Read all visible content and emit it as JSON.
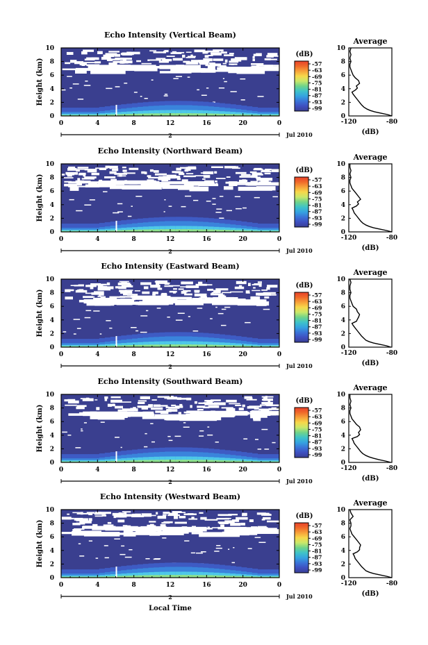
{
  "figure": {
    "footer_xlabel": "Local Time",
    "colorbar_label": "(dB)",
    "colorbar_ticks": [
      "-57",
      "-63",
      "-69",
      "-75",
      "-81",
      "-87",
      "-93",
      "-99"
    ],
    "colorbar_colors": [
      "#e8412a",
      "#f06a2a",
      "#f7a23a",
      "#f7d84a",
      "#c9e86a",
      "#6fd38a",
      "#3fc3c8",
      "#35a3e0",
      "#3a74d8",
      "#3e4fc0",
      "#3a3f94"
    ],
    "background_color": "#3a3f8f",
    "ground_color": "#4ec8e8",
    "ground_color2": "#8fe28c"
  },
  "chart_data": [
    {
      "type": "heatmap",
      "title": "Echo Intensity (Vertical Beam)",
      "ylabel": "Height (km)",
      "x_ticks": [
        "0",
        "4",
        "8",
        "12",
        "16",
        "20",
        "0"
      ],
      "x_subticks": [
        "2"
      ],
      "date_label": "Jul 2010",
      "ylim": [
        0,
        10
      ],
      "y_ticks": [
        "0",
        "2",
        "4",
        "6",
        "8",
        "10"
      ],
      "profile": {
        "title": "Average",
        "xlabel": "(dB)",
        "x_ticks": [
          "-120",
          "-80"
        ],
        "xlim": [
          -120,
          -80
        ],
        "height": [
          0,
          0.2,
          0.4,
          0.6,
          0.8,
          1.0,
          1.3,
          1.6,
          2.0,
          2.4,
          2.8,
          3.2,
          3.5,
          3.8,
          4.1,
          4.4,
          4.8,
          5.2,
          5.6,
          6.0,
          6.4,
          6.8,
          7.2,
          7.6,
          8.0,
          8.5,
          9.0,
          9.5,
          10
        ],
        "value": [
          -80,
          -84,
          -90,
          -96,
          -100,
          -103,
          -106,
          -108,
          -110,
          -112,
          -114,
          -116,
          -117,
          -114,
          -112,
          -113,
          -110,
          -111,
          -114,
          -116,
          -117,
          -118,
          -119,
          -119,
          -118,
          -119,
          -118,
          -119,
          -118
        ]
      }
    },
    {
      "type": "heatmap",
      "title": "Echo Intensity (Northward Beam)",
      "ylabel": "Height (km)",
      "x_ticks": [
        "0",
        "4",
        "8",
        "12",
        "16",
        "20",
        "0"
      ],
      "x_subticks": [
        "2"
      ],
      "date_label": "Jul 2010",
      "ylim": [
        0,
        10
      ],
      "y_ticks": [
        "0",
        "2",
        "4",
        "6",
        "8",
        "10"
      ],
      "profile": {
        "title": "Average",
        "xlabel": "(dB)",
        "x_ticks": [
          "-120",
          "-80"
        ],
        "xlim": [
          -120,
          -80
        ],
        "height": [
          0,
          0.2,
          0.4,
          0.6,
          0.8,
          1.0,
          1.3,
          1.6,
          2.0,
          2.4,
          2.8,
          3.2,
          3.5,
          3.8,
          4.1,
          4.4,
          4.8,
          5.2,
          5.6,
          6.0,
          6.4,
          6.8,
          7.2,
          7.6,
          8.0,
          8.5,
          9.0,
          9.5,
          10
        ],
        "value": [
          -80,
          -85,
          -91,
          -97,
          -101,
          -104,
          -107,
          -109,
          -111,
          -113,
          -115,
          -116,
          -117,
          -113,
          -111,
          -112,
          -109,
          -111,
          -113,
          -115,
          -117,
          -118,
          -119,
          -119,
          -118,
          -119,
          -118,
          -119,
          -119
        ]
      }
    },
    {
      "type": "heatmap",
      "title": "Echo Intensity (Eastward Beam)",
      "ylabel": "Height (km)",
      "x_ticks": [
        "0",
        "4",
        "8",
        "12",
        "16",
        "20",
        "0"
      ],
      "x_subticks": [
        "2"
      ],
      "date_label": "Jul 2010",
      "ylim": [
        0,
        10
      ],
      "y_ticks": [
        "0",
        "2",
        "4",
        "6",
        "8",
        "10"
      ],
      "profile": {
        "title": "Average",
        "xlabel": "(dB)",
        "x_ticks": [
          "-120",
          "-80"
        ],
        "xlim": [
          -120,
          -80
        ],
        "height": [
          0,
          0.2,
          0.4,
          0.6,
          0.8,
          1.0,
          1.3,
          1.6,
          2.0,
          2.4,
          2.8,
          3.2,
          3.5,
          3.8,
          4.1,
          4.4,
          4.8,
          5.2,
          5.6,
          6.0,
          6.4,
          6.8,
          7.2,
          7.6,
          8.0,
          8.5,
          9.0,
          9.5,
          10
        ],
        "value": [
          -81,
          -85,
          -91,
          -97,
          -101,
          -104,
          -106,
          -108,
          -110,
          -112,
          -114,
          -116,
          -117,
          -113,
          -112,
          -111,
          -110,
          -112,
          -113,
          -116,
          -117,
          -118,
          -119,
          -119,
          -118,
          -119,
          -119,
          -118,
          -119
        ]
      }
    },
    {
      "type": "heatmap",
      "title": "Echo Intensity (Southward Beam)",
      "ylabel": "Height (km)",
      "x_ticks": [
        "0",
        "4",
        "8",
        "12",
        "16",
        "20",
        "0"
      ],
      "x_subticks": [
        "2"
      ],
      "date_label": "Jul 2010",
      "ylim": [
        0,
        10
      ],
      "y_ticks": [
        "0",
        "2",
        "4",
        "6",
        "8",
        "10"
      ],
      "profile": {
        "title": "Average",
        "xlabel": "(dB)",
        "x_ticks": [
          "-120",
          "-80"
        ],
        "xlim": [
          -120,
          -80
        ],
        "height": [
          0,
          0.2,
          0.4,
          0.6,
          0.8,
          1.0,
          1.3,
          1.6,
          2.0,
          2.4,
          2.8,
          3.2,
          3.5,
          3.8,
          4.1,
          4.4,
          4.8,
          5.2,
          5.6,
          6.0,
          6.4,
          6.8,
          7.2,
          7.6,
          8.0,
          8.5,
          9.0,
          9.5,
          10
        ],
        "value": [
          -81,
          -86,
          -92,
          -97,
          -101,
          -104,
          -107,
          -109,
          -111,
          -113,
          -115,
          -116,
          -117,
          -112,
          -110,
          -111,
          -109,
          -110,
          -113,
          -115,
          -117,
          -118,
          -119,
          -119,
          -118,
          -119,
          -118,
          -119,
          -119
        ]
      }
    },
    {
      "type": "heatmap",
      "title": "Echo Intensity (Westward Beam)",
      "ylabel": "Height (km)",
      "x_ticks": [
        "0",
        "4",
        "8",
        "12",
        "16",
        "20",
        "0"
      ],
      "x_subticks": [
        "2"
      ],
      "date_label": "Jul 2010",
      "ylim": [
        0,
        10
      ],
      "y_ticks": [
        "0",
        "2",
        "4",
        "6",
        "8",
        "10"
      ],
      "profile": {
        "title": "Average",
        "xlabel": "(dB)",
        "x_ticks": [
          "-120",
          "-80"
        ],
        "xlim": [
          -120,
          -80
        ],
        "height": [
          0,
          0.2,
          0.4,
          0.6,
          0.8,
          1.0,
          1.3,
          1.6,
          2.0,
          2.4,
          2.8,
          3.2,
          3.5,
          3.8,
          4.1,
          4.4,
          4.8,
          5.2,
          5.6,
          6.0,
          6.4,
          6.8,
          7.2,
          7.6,
          8.0,
          8.5,
          9.0,
          9.5,
          10
        ],
        "value": [
          -80,
          -85,
          -91,
          -97,
          -101,
          -104,
          -106,
          -108,
          -110,
          -112,
          -114,
          -115,
          -116,
          -112,
          -110,
          -110,
          -109,
          -111,
          -113,
          -115,
          -117,
          -118,
          -119,
          -118,
          -118,
          -119,
          -116,
          -118,
          -119
        ]
      }
    }
  ]
}
